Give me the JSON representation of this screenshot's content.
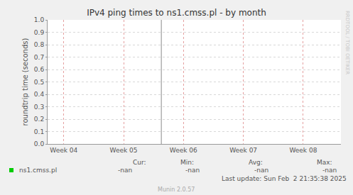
{
  "chart_data": {
    "type": "line",
    "title": "IPv4 ping times to ns1.cmss.pl - by month",
    "y_label": "roundtrip time (seconds)",
    "x": [
      4,
      5,
      6,
      7,
      8
    ],
    "series": [
      {
        "name": "ns1.cmss.pl",
        "color": "#00cc00",
        "values": [
          null,
          null,
          null,
          null,
          null
        ]
      }
    ],
    "xlim": [
      3.73,
      8.63
    ],
    "xticks": [
      {
        "value": 4,
        "label": "Week 04"
      },
      {
        "value": 5,
        "label": "Week 05"
      },
      {
        "value": 6,
        "label": "Week 06"
      },
      {
        "value": 7,
        "label": "Week 07"
      },
      {
        "value": 8,
        "label": "Week 08"
      }
    ],
    "ylim": [
      0,
      1
    ],
    "yticks": [
      {
        "value": 0,
        "label": "0.0"
      },
      0.1,
      0.2,
      0.3,
      0.4,
      0.5,
      0.6,
      0.7,
      0.8,
      0.9,
      {
        "value": 1,
        "label": "1.0"
      }
    ],
    "vertical_line": 5.63,
    "grid": true,
    "legend_table": {
      "headers": [
        "Cur:",
        "Min:",
        "Avg:",
        "Max:"
      ],
      "rows": [
        {
          "name": "ns1.cmss.pl",
          "values": [
            "-nan",
            "-nan",
            "-nan",
            "-nan"
          ]
        }
      ],
      "last_update": "Last update: Sun Feb  2 21:35:38 2025"
    },
    "footer": "Munin 2.0.57",
    "side_text": "RRDTOOL / TOBI OETIKER"
  }
}
